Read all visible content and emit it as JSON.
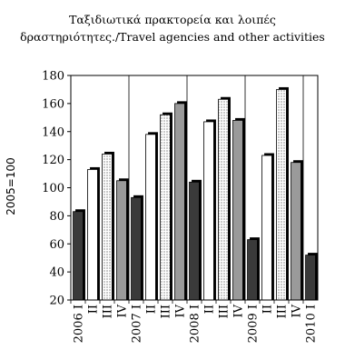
{
  "chart_data": {
    "type": "bar",
    "title": "Ταξιδιωτικά πρακτορεία και λοιπές",
    "subtitle": "δραστηριότητες./Travel agencies and other activities",
    "xlabel": "",
    "ylabel": "2005=100",
    "ylim": [
      20,
      180
    ],
    "yticks": [
      20,
      40,
      60,
      80,
      100,
      120,
      140,
      160,
      180
    ],
    "grid": false,
    "legend": "none",
    "categories": [
      "2006 I",
      "II",
      "III",
      "IV",
      "2007 I",
      "II",
      "III",
      "IV",
      "2008 I",
      "II",
      "III",
      "IV",
      "2009 I",
      "II",
      "III",
      "IV",
      "2010 I"
    ],
    "values": [
      83,
      113,
      124,
      105,
      93,
      138,
      152,
      160,
      104,
      147,
      163,
      148,
      63,
      123,
      170,
      118,
      52
    ],
    "quarter_colors": {
      "I": "#3a3a3a",
      "II": "#ffffff",
      "III": "#ffffff",
      "IV": "#9a9a9a"
    },
    "quarter_patterns": {
      "I": "solid",
      "II": "solid",
      "III": "dotted",
      "IV": "solid"
    }
  }
}
